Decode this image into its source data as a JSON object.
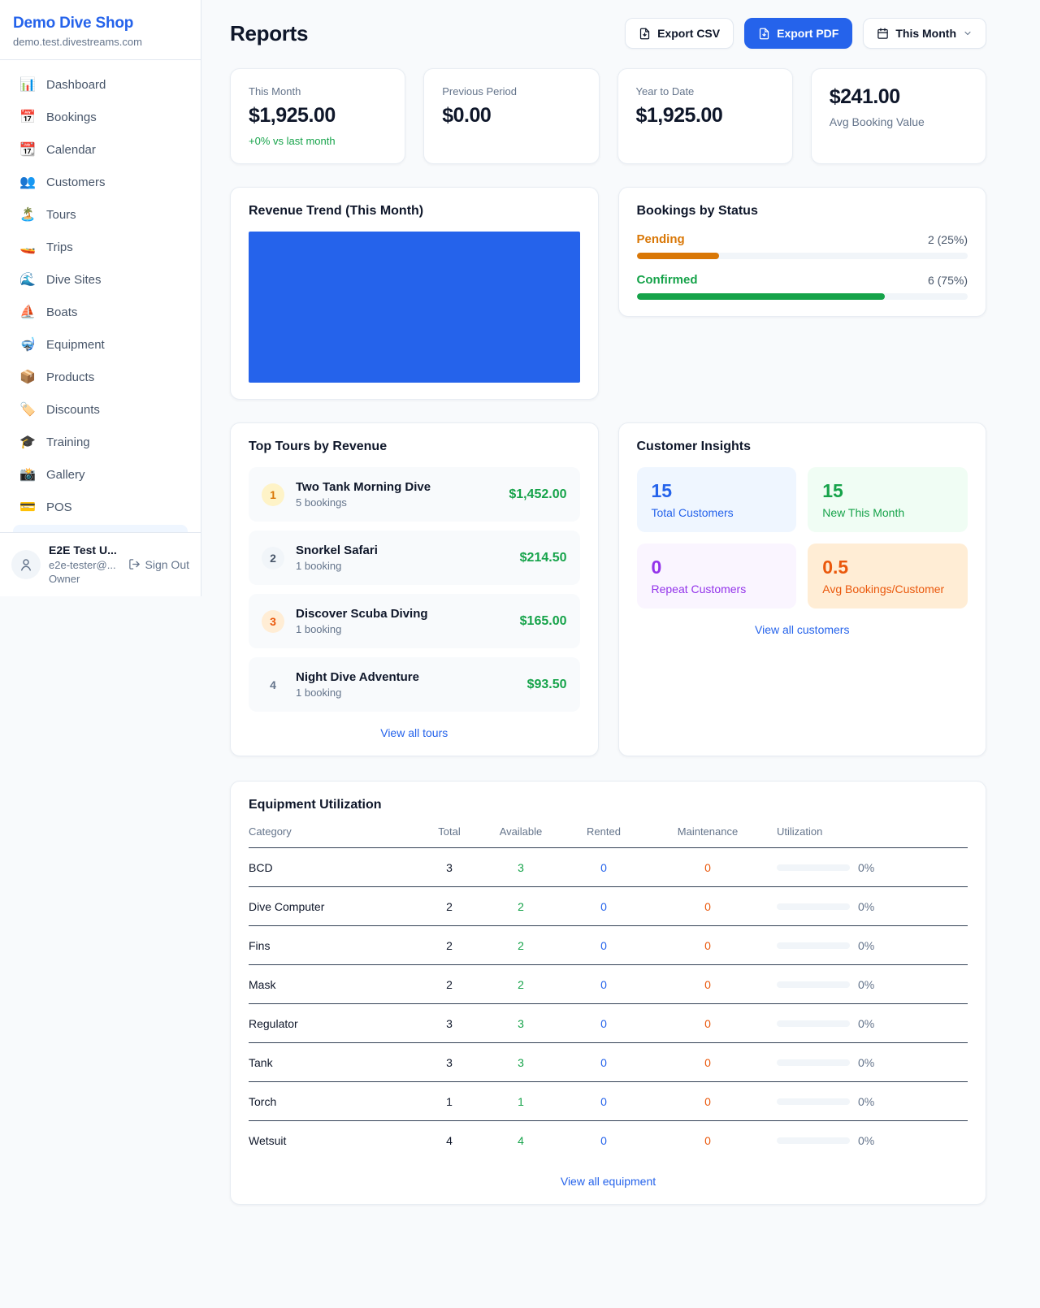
{
  "sidebar": {
    "shop_name": "Demo Dive Shop",
    "shop_domain": "demo.test.divestreams.com",
    "items": [
      {
        "icon": "📊",
        "label": "Dashboard"
      },
      {
        "icon": "📅",
        "label": "Bookings"
      },
      {
        "icon": "📆",
        "label": "Calendar"
      },
      {
        "icon": "👥",
        "label": "Customers"
      },
      {
        "icon": "🏝️",
        "label": "Tours"
      },
      {
        "icon": "🚤",
        "label": "Trips"
      },
      {
        "icon": "🌊",
        "label": "Dive Sites"
      },
      {
        "icon": "⛵",
        "label": "Boats"
      },
      {
        "icon": "🤿",
        "label": "Equipment"
      },
      {
        "icon": "📦",
        "label": "Products"
      },
      {
        "icon": "🏷️",
        "label": "Discounts"
      },
      {
        "icon": "🎓",
        "label": "Training"
      },
      {
        "icon": "📸",
        "label": "Gallery"
      },
      {
        "icon": "💳",
        "label": "POS"
      }
    ],
    "user": {
      "name": "E2E Test U...",
      "email": "e2e-tester@...",
      "role": "Owner",
      "sign_out_label": "Sign Out"
    }
  },
  "header": {
    "title": "Reports",
    "export_csv_label": "Export CSV",
    "export_pdf_label": "Export PDF",
    "period_label": "This Month"
  },
  "stats": [
    {
      "label": "This Month",
      "value": "$1,925.00",
      "change": "+0% vs last month"
    },
    {
      "label": "Previous Period",
      "value": "$0.00"
    },
    {
      "label": "Year to Date",
      "value": "$1,925.00"
    },
    {
      "value": "$241.00",
      "label": "Avg Booking Value"
    }
  ],
  "revenue_trend": {
    "title": "Revenue Trend (This Month)",
    "bar_color": "#2563eb"
  },
  "bookings_by_status": {
    "title": "Bookings by Status",
    "rows": [
      {
        "label": "Pending",
        "count": "2 (25%)",
        "percent": "25%",
        "color": "#d97706"
      },
      {
        "label": "Confirmed",
        "count": "6 (75%)",
        "percent": "75%",
        "color": "#16a34a"
      }
    ]
  },
  "top_tours": {
    "title": "Top Tours by Revenue",
    "items": [
      {
        "rank": "1",
        "name": "Two Tank Morning Dive",
        "bookings": "5 bookings",
        "amount": "$1,452.00"
      },
      {
        "rank": "2",
        "name": "Snorkel Safari",
        "bookings": "1 booking",
        "amount": "$214.50"
      },
      {
        "rank": "3",
        "name": "Discover Scuba Diving",
        "bookings": "1 booking",
        "amount": "$165.00"
      },
      {
        "rank": "4",
        "name": "Night Dive Adventure",
        "bookings": "1 booking",
        "amount": "$93.50"
      }
    ],
    "view_all_label": "View all tours"
  },
  "customer_insights": {
    "title": "Customer Insights",
    "tiles": [
      {
        "value": "15",
        "label": "Total Customers",
        "accent": "#2563eb"
      },
      {
        "value": "15",
        "label": "New This Month",
        "accent": "#16a34a"
      },
      {
        "value": "0",
        "label": "Repeat Customers",
        "accent": "#9333ea"
      },
      {
        "value": "0.5",
        "label": "Avg Bookings/Customer",
        "accent": "#ea580c"
      }
    ],
    "view_all_label": "View all customers"
  },
  "equipment": {
    "title": "Equipment Utilization",
    "columns": [
      "Category",
      "Total",
      "Available",
      "Rented",
      "Maintenance",
      "Utilization"
    ],
    "rows": [
      [
        "BCD",
        "3",
        "3",
        "0",
        "0",
        "0%"
      ],
      [
        "Dive Computer",
        "2",
        "2",
        "0",
        "0",
        "0%"
      ],
      [
        "Fins",
        "2",
        "2",
        "0",
        "0",
        "0%"
      ],
      [
        "Mask",
        "2",
        "2",
        "0",
        "0",
        "0%"
      ],
      [
        "Regulator",
        "3",
        "3",
        "0",
        "0",
        "0%"
      ],
      [
        "Tank",
        "3",
        "3",
        "0",
        "0",
        "0%"
      ],
      [
        "Torch",
        "1",
        "1",
        "0",
        "0",
        "0%"
      ],
      [
        "Wetsuit",
        "4",
        "4",
        "0",
        "0",
        "0%"
      ]
    ],
    "view_all_label": "View all equipment"
  },
  "colors": {
    "accent_blue": "#2563eb",
    "green": "#16a34a",
    "orange_pending": "#d97706",
    "orange_maintenance": "#ea580c",
    "purple": "#9333ea",
    "page_bg": "#f8fafc"
  }
}
